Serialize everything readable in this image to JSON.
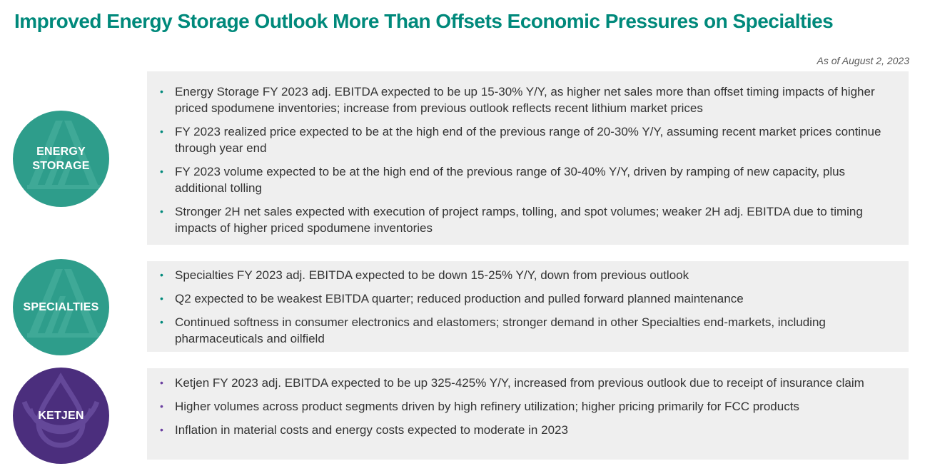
{
  "title": "Improved Energy Storage Outlook More Than Offsets Economic Pressures on Specialties",
  "as_of": "As of August 2, 2023",
  "colors": {
    "teal": "#2e9d8b",
    "teal_title": "#00897b",
    "purple": "#4b2e7d",
    "purple_bullet": "#6a3fa0",
    "panel_bg": "#efefef"
  },
  "sections": [
    {
      "badge": "ENERGY\nSTORAGE",
      "icon": "albemarle-logo-icon",
      "bullets": [
        "Energy Storage FY 2023 adj. EBITDA expected to be up 15-30% Y/Y, as higher net sales more than offset timing impacts of higher priced spodumene inventories; increase from previous outlook reflects recent lithium market prices",
        "FY 2023 realized price expected to be at the high end of the previous range of 20-30% Y/Y, assuming recent market prices continue through year end",
        "FY 2023 volume expected to be at the high end of the previous range of 30-40% Y/Y, driven by ramping of new capacity, plus additional tolling",
        "Stronger 2H net sales expected with execution of project ramps, tolling, and spot volumes; weaker 2H adj. EBITDA due to timing impacts of higher priced spodumene inventories"
      ]
    },
    {
      "badge": "SPECIALTIES",
      "icon": "albemarle-logo-icon",
      "bullets": [
        "Specialties FY 2023 adj. EBITDA expected to be down 15-25% Y/Y, down from previous outlook",
        "Q2 expected to be weakest EBITDA quarter; reduced production and pulled forward planned maintenance",
        "Continued softness in consumer electronics and elastomers; stronger demand in other Specialties end-markets, including pharmaceuticals and oilfield"
      ]
    },
    {
      "badge": "KETJEN",
      "icon": "ketjen-drop-logo-icon",
      "bullets": [
        "Ketjen FY 2023 adj. EBITDA expected to be up 325-425% Y/Y, increased from previous outlook due to receipt of insurance claim",
        "Higher volumes across product segments driven by high refinery utilization; higher pricing primarily for FCC products",
        "Inflation in material costs and energy costs expected to moderate in 2023"
      ]
    }
  ]
}
